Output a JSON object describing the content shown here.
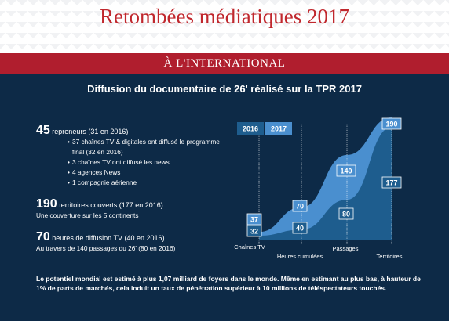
{
  "header": {
    "title": "Retombées médiatiques 2017",
    "section": "À L'INTERNATIONAL"
  },
  "panel": {
    "subtitle": "Diffusion du documentaire de 26' réalisé sur la TPR 2017"
  },
  "stats": {
    "reporters": {
      "number": "45",
      "text": " repreneurs (31 en 2016)",
      "bullets": [
        "37 chaînes TV & digitales ont diffusé le programme final (32 en 2016)",
        "3 chaînes TV ont diffusé les news",
        "4 agences News",
        "1 compagnie aérienne"
      ]
    },
    "territories": {
      "number": "190",
      "text": " territoires couverts (177 en 2016)",
      "sub": "Une couverture sur les 5 continents"
    },
    "hours": {
      "number": "70",
      "text": " heures de diffusion TV (40 en 2016)",
      "sub": "Au travers de 140 passages du 26' (80 en 2016)"
    }
  },
  "footnote": "Le potentiel mondial est estimé à plus 1,07 milliard de foyers dans le monde. Même en estimant au plus bas, à hauteur de 1% de parts de marchés, cela induit un taux de pénétration supérieur à 10 millions de téléspectateurs touchés.",
  "colors": {
    "title_red": "#c0272d",
    "bar_red": "#b01e2e",
    "panel_navy": "#0d2a47",
    "series_2016": "#1e5d8e",
    "series_2017": "#4a8fcf"
  },
  "chart_data": {
    "type": "area",
    "categories": [
      "Chaînes TV",
      "Heures cumulées",
      "Passages",
      "Territoires"
    ],
    "series": [
      {
        "name": "2016",
        "values": [
          32,
          40,
          80,
          177
        ]
      },
      {
        "name": "2017",
        "values": [
          37,
          70,
          140,
          190
        ]
      }
    ],
    "legend": "top-left"
  }
}
